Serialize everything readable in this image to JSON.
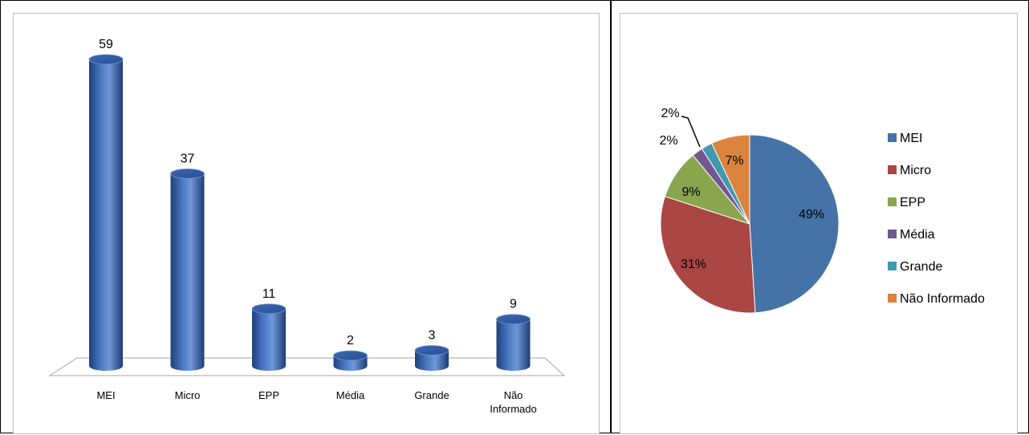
{
  "chart_data": [
    {
      "type": "bar",
      "categories": [
        "MEI",
        "Micro",
        "EPP",
        "Média",
        "Grande",
        "Não Informado"
      ],
      "category_lines": [
        [
          "MEI"
        ],
        [
          "Micro"
        ],
        [
          "EPP"
        ],
        [
          "Média"
        ],
        [
          "Grande"
        ],
        [
          "Não",
          "Informado"
        ]
      ],
      "values": [
        59,
        37,
        11,
        2,
        3,
        9
      ],
      "style": "3d-cylinder",
      "color": "#4472c4"
    },
    {
      "type": "pie",
      "labels": [
        "MEI",
        "Micro",
        "EPP",
        "Média",
        "Grande",
        "Não Informado"
      ],
      "values": [
        49,
        31,
        9,
        2,
        2,
        7
      ],
      "value_labels": [
        "49%",
        "31%",
        "9%",
        "2%",
        "2%",
        "7%"
      ],
      "colors": [
        "#4572a7",
        "#aa4643",
        "#89a54e",
        "#71588f",
        "#4198af",
        "#db843d"
      ],
      "legend_position": "right"
    }
  ]
}
